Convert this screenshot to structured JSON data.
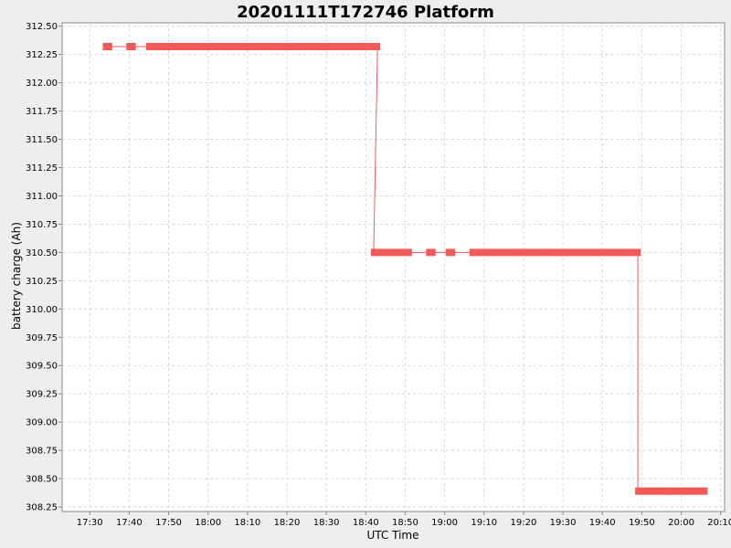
{
  "chart_data": {
    "type": "line",
    "title": "20201111T172746 Platform",
    "xlabel": "UTC Time",
    "ylabel": "battery charge (Ah)",
    "xlim": [
      "17:23",
      "20:11"
    ],
    "ylim": [
      308.21,
      312.53
    ],
    "grid": true,
    "x_ticks": [
      "17:30",
      "17:40",
      "17:50",
      "18:00",
      "18:10",
      "18:20",
      "18:30",
      "18:40",
      "18:50",
      "19:00",
      "19:10",
      "19:20",
      "19:30",
      "19:40",
      "19:50",
      "20:00",
      "20:10"
    ],
    "y_ticks": [
      "312.50",
      "312.25",
      "312.00",
      "311.75",
      "311.50",
      "311.25",
      "311.00",
      "310.75",
      "310.50",
      "310.25",
      "310.00",
      "309.75",
      "309.50",
      "309.25",
      "309.00",
      "308.75",
      "308.50",
      "308.25"
    ],
    "series": [
      {
        "color": "#f25a5a",
        "segments": [
          {
            "start": "17:34",
            "end": "17:35",
            "value": 312.32
          },
          {
            "start": "17:40",
            "end": "17:41",
            "value": 312.32
          },
          {
            "start": "17:45",
            "end": "18:43",
            "value": 312.32
          },
          {
            "start": "18:42",
            "end": "18:51",
            "value": 310.5
          },
          {
            "start": "18:56",
            "end": "18:57",
            "value": 310.5
          },
          {
            "start": "19:01",
            "end": "19:02",
            "value": 310.5
          },
          {
            "start": "19:07",
            "end": "19:08",
            "value": 310.5
          },
          {
            "start": "19:09",
            "end": "19:18",
            "value": 310.5
          },
          {
            "start": "19:19",
            "end": "19:24",
            "value": 310.5
          },
          {
            "start": "19:25",
            "end": "19:49",
            "value": 310.5
          },
          {
            "start": "19:49",
            "end": "19:57",
            "value": 308.39
          },
          {
            "start": "19:57",
            "end": "20:01",
            "value": 308.39
          },
          {
            "start": "20:01",
            "end": "20:03",
            "value": 308.39
          },
          {
            "start": "20:04",
            "end": "20:06",
            "value": 308.39
          }
        ]
      }
    ]
  }
}
